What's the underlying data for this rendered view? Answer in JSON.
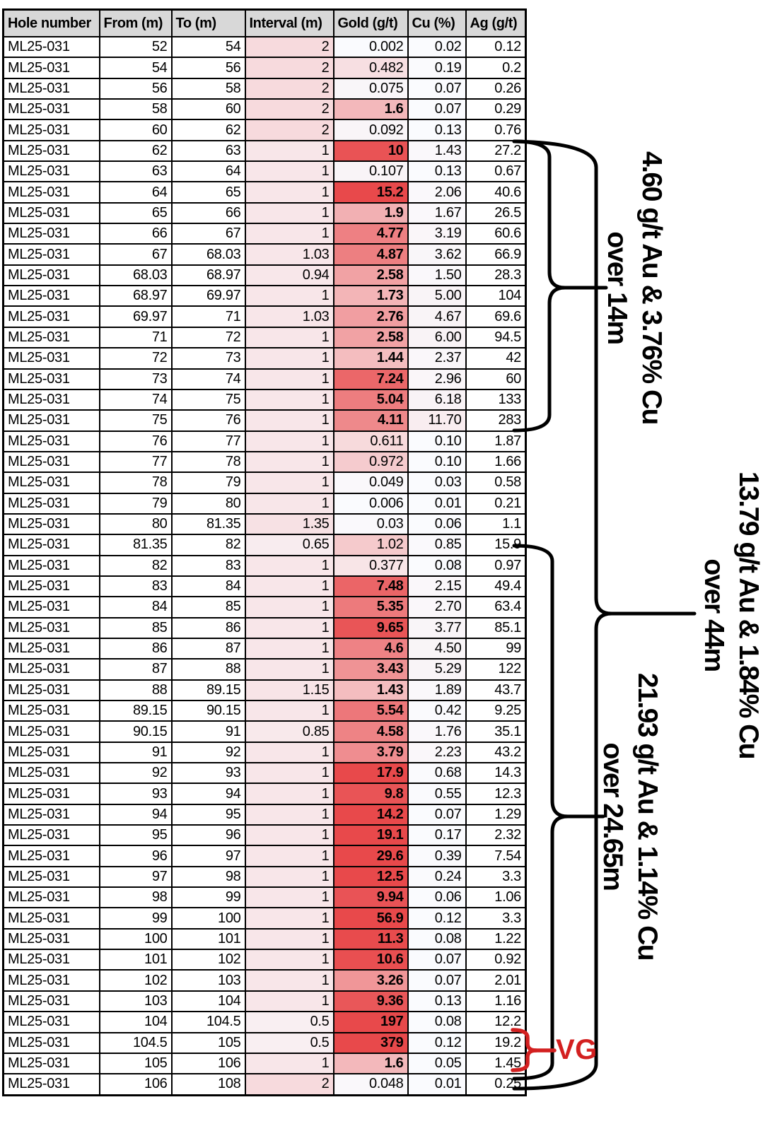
{
  "chart_data": {
    "type": "table",
    "columns": [
      "Hole number",
      "From (m)",
      "To (m)",
      "Interval (m)",
      "Gold (g/t)",
      "Cu (%)",
      "Ag (g/t)"
    ],
    "hole_number": "ML25-031",
    "rows": [
      [
        "52",
        "54",
        "2",
        "0.002",
        "0.02",
        "0.12"
      ],
      [
        "54",
        "56",
        "2",
        "0.482",
        "0.19",
        "0.2"
      ],
      [
        "56",
        "58",
        "2",
        "0.075",
        "0.07",
        "0.26"
      ],
      [
        "58",
        "60",
        "2",
        "1.6",
        "0.07",
        "0.29"
      ],
      [
        "60",
        "62",
        "2",
        "0.092",
        "0.13",
        "0.76"
      ],
      [
        "62",
        "63",
        "1",
        "10",
        "1.43",
        "27.2"
      ],
      [
        "63",
        "64",
        "1",
        "0.107",
        "0.13",
        "0.67"
      ],
      [
        "64",
        "65",
        "1",
        "15.2",
        "2.06",
        "40.6"
      ],
      [
        "65",
        "66",
        "1",
        "1.9",
        "1.67",
        "26.5"
      ],
      [
        "66",
        "67",
        "1",
        "4.77",
        "3.19",
        "60.6"
      ],
      [
        "67",
        "68.03",
        "1.03",
        "4.87",
        "3.62",
        "66.9"
      ],
      [
        "68.03",
        "68.97",
        "0.94",
        "2.58",
        "1.50",
        "28.3"
      ],
      [
        "68.97",
        "69.97",
        "1",
        "1.73",
        "5.00",
        "104"
      ],
      [
        "69.97",
        "71",
        "1.03",
        "2.76",
        "4.67",
        "69.6"
      ],
      [
        "71",
        "72",
        "1",
        "2.58",
        "6.00",
        "94.5"
      ],
      [
        "72",
        "73",
        "1",
        "1.44",
        "2.37",
        "42"
      ],
      [
        "73",
        "74",
        "1",
        "7.24",
        "2.96",
        "60"
      ],
      [
        "74",
        "75",
        "1",
        "5.04",
        "6.18",
        "133"
      ],
      [
        "75",
        "76",
        "1",
        "4.11",
        "11.70",
        "283"
      ],
      [
        "76",
        "77",
        "1",
        "0.611",
        "0.10",
        "1.87"
      ],
      [
        "77",
        "78",
        "1",
        "0.972",
        "0.10",
        "1.66"
      ],
      [
        "78",
        "79",
        "1",
        "0.049",
        "0.03",
        "0.58"
      ],
      [
        "79",
        "80",
        "1",
        "0.006",
        "0.01",
        "0.21"
      ],
      [
        "80",
        "81.35",
        "1.35",
        "0.03",
        "0.06",
        "1.1"
      ],
      [
        "81.35",
        "82",
        "0.65",
        "1.02",
        "0.85",
        "15.9"
      ],
      [
        "82",
        "83",
        "1",
        "0.377",
        "0.08",
        "0.97"
      ],
      [
        "83",
        "84",
        "1",
        "7.48",
        "2.15",
        "49.4"
      ],
      [
        "84",
        "85",
        "1",
        "5.35",
        "2.70",
        "63.4"
      ],
      [
        "85",
        "86",
        "1",
        "9.65",
        "3.77",
        "85.1"
      ],
      [
        "86",
        "87",
        "1",
        "4.6",
        "4.50",
        "99"
      ],
      [
        "87",
        "88",
        "1",
        "3.43",
        "5.29",
        "122"
      ],
      [
        "88",
        "89.15",
        "1.15",
        "1.43",
        "1.89",
        "43.7"
      ],
      [
        "89.15",
        "90.15",
        "1",
        "5.54",
        "0.42",
        "9.25"
      ],
      [
        "90.15",
        "91",
        "0.85",
        "4.58",
        "1.76",
        "35.1"
      ],
      [
        "91",
        "92",
        "1",
        "3.79",
        "2.23",
        "43.2"
      ],
      [
        "92",
        "93",
        "1",
        "17.9",
        "0.68",
        "14.3"
      ],
      [
        "93",
        "94",
        "1",
        "9.8",
        "0.55",
        "12.3"
      ],
      [
        "94",
        "95",
        "1",
        "14.2",
        "0.07",
        "1.29"
      ],
      [
        "95",
        "96",
        "1",
        "19.1",
        "0.17",
        "2.32"
      ],
      [
        "96",
        "97",
        "1",
        "29.6",
        "0.39",
        "7.54"
      ],
      [
        "97",
        "98",
        "1",
        "12.5",
        "0.24",
        "3.3"
      ],
      [
        "98",
        "99",
        "1",
        "9.94",
        "0.06",
        "1.06"
      ],
      [
        "99",
        "100",
        "1",
        "56.9",
        "0.12",
        "3.3"
      ],
      [
        "100",
        "101",
        "1",
        "11.3",
        "0.08",
        "1.22"
      ],
      [
        "101",
        "102",
        "1",
        "10.6",
        "0.07",
        "0.92"
      ],
      [
        "102",
        "103",
        "1",
        "3.26",
        "0.07",
        "2.01"
      ],
      [
        "103",
        "104",
        "1",
        "9.36",
        "0.13",
        "1.16"
      ],
      [
        "104",
        "104.5",
        "0.5",
        "197",
        "0.08",
        "12.2"
      ],
      [
        "104.5",
        "105",
        "0.5",
        "379",
        "0.12",
        "19.2"
      ],
      [
        "105",
        "106",
        "1",
        "1.6",
        "0.05",
        "1.45"
      ],
      [
        "106",
        "108",
        "2",
        "0.048",
        "0.01",
        "0.25"
      ]
    ],
    "heat_columns": {
      "gold": {
        "scale": "log",
        "max": 379,
        "bold_min": 10
      },
      "cu": {
        "scale": "log",
        "max": 11.7,
        "bold_min": 1.4
      },
      "ag": {
        "scale": "pow",
        "exp": 0.8,
        "max": 283,
        "bold_min": 130
      }
    },
    "annotations": {
      "intercept_14m": {
        "line1": "4.60 g/t Au & 3.76% Cu",
        "line2": "over 14m"
      },
      "intercept_44m": {
        "line1": "13.79 g/t Au & 1.84% Cu",
        "line2": "over 44m"
      },
      "intercept_24_65m": {
        "line1": "21.93 g/t Au & 1.14% Cu",
        "line2": "over 24.65m"
      },
      "vg_label": "VG"
    },
    "colors": {
      "heat_low": "#fafbfe",
      "heat_high": "#e8494b",
      "header_bg": "#d8d8d8",
      "brace_black": "#000000",
      "vg_red": "#d32020"
    },
    "layout_hints": {
      "legend": "none",
      "grid": "all-cell-borders"
    }
  }
}
